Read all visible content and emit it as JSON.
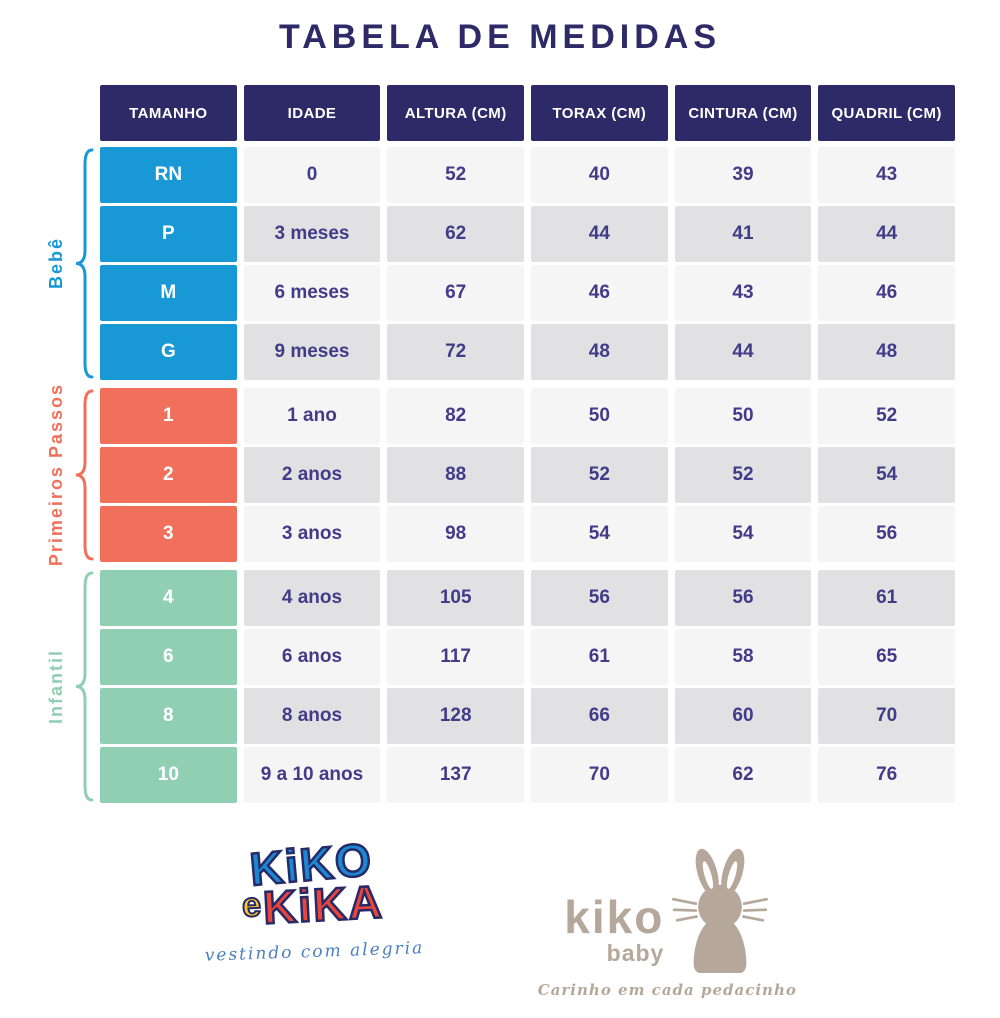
{
  "title": "TABELA DE MEDIDAS",
  "chart_data": {
    "type": "table",
    "title": "TABELA DE MEDIDAS",
    "columns": [
      "TAMANHO",
      "IDADE",
      "ALTURA (CM)",
      "TORAX (CM)",
      "CINTURA (CM)",
      "QUADRIL (CM)"
    ],
    "groups": [
      {
        "label": "Bebê",
        "color": "#1898d5",
        "rows": [
          [
            "RN",
            "0",
            "52",
            "40",
            "39",
            "43"
          ],
          [
            "P",
            "3 meses",
            "62",
            "44",
            "41",
            "44"
          ],
          [
            "M",
            "6 meses",
            "67",
            "46",
            "43",
            "46"
          ],
          [
            "G",
            "9 meses",
            "72",
            "48",
            "44",
            "48"
          ]
        ]
      },
      {
        "label": "Primeiros Passos",
        "color": "#f0705b",
        "rows": [
          [
            "1",
            "1 ano",
            "82",
            "50",
            "50",
            "52"
          ],
          [
            "2",
            "2 anos",
            "88",
            "52",
            "52",
            "54"
          ],
          [
            "3",
            "3 anos",
            "98",
            "54",
            "54",
            "56"
          ]
        ]
      },
      {
        "label": "Infantil",
        "color": "#90cfb3",
        "rows": [
          [
            "4",
            "4 anos",
            "105",
            "56",
            "56",
            "61"
          ],
          [
            "6",
            "6 anos",
            "117",
            "61",
            "58",
            "65"
          ],
          [
            "8",
            "8 anos",
            "128",
            "66",
            "60",
            "70"
          ],
          [
            "10",
            "9 a 10 anos",
            "137",
            "70",
            "62",
            "76"
          ]
        ]
      }
    ],
    "layout": {
      "header_bg": "#2d2a67",
      "row_light": "#f5f5f6",
      "row_dark": "#e1e1e3",
      "cell_text": "#443a88",
      "grid": "off",
      "legend": "left-brackets"
    }
  },
  "footer": {
    "kiko_e_kika": {
      "word_top": "KiKO",
      "e": "e",
      "word_bottom": "KiKA",
      "tagline": "vestindo com alegria",
      "colors": {
        "kiko_blue": "#1d87d2",
        "kika_red": "#e8463d",
        "e_yellow": "#ffc629",
        "outline_navy": "#262a66",
        "tagline_blue": "#4a7fc1"
      }
    },
    "kiko_baby": {
      "name": "kiko",
      "sub": "baby",
      "tagline": "Carinho em cada pedacinho",
      "color": "#b5a89b"
    }
  }
}
